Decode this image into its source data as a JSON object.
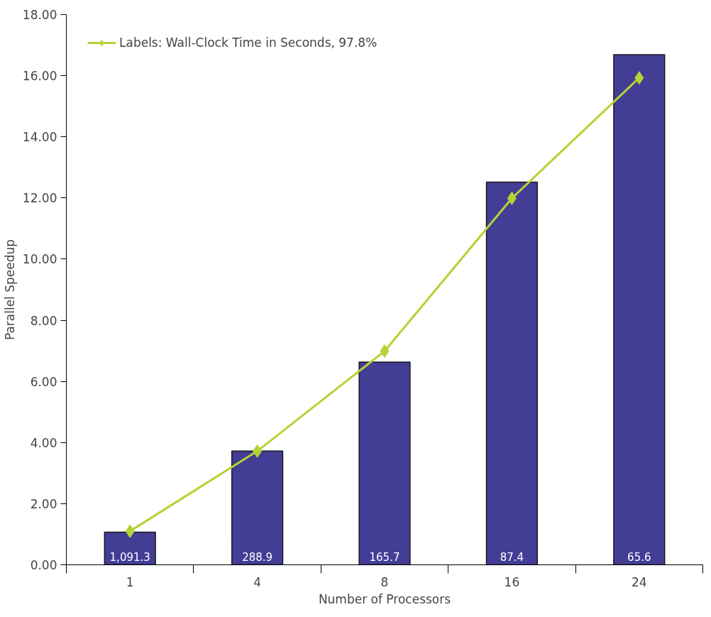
{
  "chart_data": {
    "type": "bar",
    "xlabel": "Number of Processors",
    "ylabel": "Parallel Speedup",
    "categories": [
      "1",
      "4",
      "8",
      "16",
      "24"
    ],
    "series": [
      {
        "color": "#433d96",
        "values": [
          1.07,
          3.72,
          6.63,
          12.52,
          16.69
        ]
      },
      {
        "type": "line",
        "name": "Labels: Wall-Clock Time in Seconds, 97.8%",
        "color": "#b5d334",
        "values": [
          1.1,
          3.72,
          6.99,
          11.99,
          15.93
        ],
        "marker": "diamond",
        "line_style": "solid"
      }
    ],
    "ylim": [
      0,
      18
    ],
    "yticks": [
      {
        "value": 0,
        "label": "0.00"
      },
      {
        "value": 2,
        "label": "2.00"
      },
      {
        "value": 4,
        "label": "4.00"
      },
      {
        "value": 6,
        "label": "6.00"
      },
      {
        "value": 8,
        "label": "8.00"
      },
      {
        "value": 10,
        "label": "10.00"
      },
      {
        "value": 12,
        "label": "12.00"
      },
      {
        "value": 14,
        "label": "14.00"
      },
      {
        "value": 16,
        "label": "16.00"
      },
      {
        "value": 18,
        "label": "18.00"
      }
    ],
    "annotations": [
      {
        "text": "1,091.3",
        "x": "1",
        "y": 0
      },
      {
        "text": "288.9",
        "x": "4",
        "y": 0
      },
      {
        "text": "165.7",
        "x": "8",
        "y": 0
      },
      {
        "text": "87.4",
        "x": "16",
        "y": 0
      },
      {
        "text": "65.6",
        "x": "24",
        "y": 0
      }
    ],
    "grid": false,
    "legend": "top left"
  }
}
